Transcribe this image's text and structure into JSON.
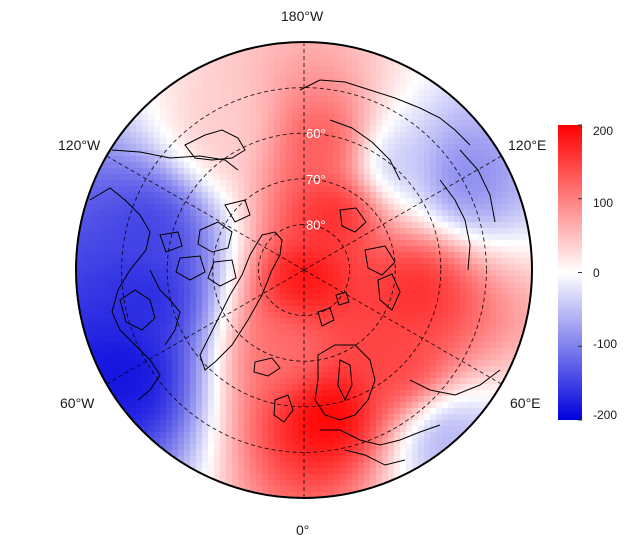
{
  "map": {
    "projection": "north-polar-stereographic",
    "colormap": {
      "min": -200,
      "max": 200,
      "low_color": "#0000dd",
      "mid_color": "#ffffff",
      "high_color": "#ff0000"
    },
    "lon_labels": {
      "top": "180°W",
      "upper_left": "120°W",
      "upper_right": "120°E",
      "lower_left": "60°W",
      "lower_right": "60°E",
      "bottom": "0°"
    },
    "lat_labels": [
      "60°",
      "70°",
      "80°"
    ],
    "colorbar_ticks": [
      "200",
      "100",
      "0",
      "-100",
      "-200"
    ],
    "colorbar_values": [
      200,
      100,
      0,
      -100,
      -200
    ],
    "anomaly_blobs": [
      {
        "lon": 10,
        "lat": 58,
        "value": 210
      },
      {
        "lon": 0,
        "lat": 88,
        "value": 190
      },
      {
        "lon": 150,
        "lat": 75,
        "value": 180
      },
      {
        "lon": 170,
        "lat": 62,
        "value": 140
      },
      {
        "lon": 80,
        "lat": 65,
        "value": 170
      },
      {
        "lon": 45,
        "lat": 60,
        "value": 150
      },
      {
        "lon": -10,
        "lat": 72,
        "value": 110
      },
      {
        "lon": -80,
        "lat": 55,
        "value": -170
      },
      {
        "lon": -60,
        "lat": 45,
        "value": -190
      },
      {
        "lon": -105,
        "lat": 55,
        "value": -150
      },
      {
        "lon": 120,
        "lat": 50,
        "value": -100
      },
      {
        "lon": 140,
        "lat": 60,
        "value": -60
      },
      {
        "lon": 40,
        "lat": 42,
        "value": -70
      },
      {
        "lon": -150,
        "lat": 55,
        "value": 40
      }
    ]
  }
}
